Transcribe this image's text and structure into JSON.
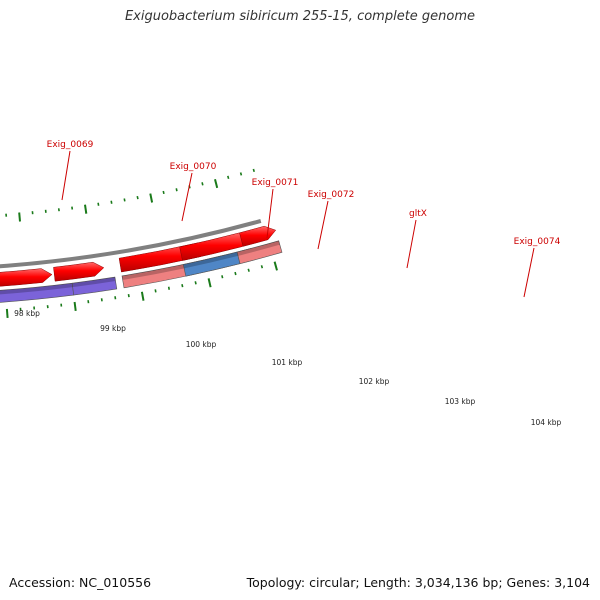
{
  "title": "Exiguobacterium sibiricum 255-15, complete genome",
  "footer": {
    "accession": "Accession: NC_010556",
    "summary": "Topology: circular; Length: 3,034,136 bp; Genes: 3,104"
  },
  "colors": {
    "cds": "#ff0000",
    "backbone": "#808080",
    "ticks": "#1a7a1a",
    "label": "#cc0000"
  },
  "scale_labels": [
    "98 kbp",
    "99 kbp",
    "100 kbp",
    "101 kbp",
    "102 kbp",
    "103 kbp",
    "104 kbp"
  ],
  "genes": [
    {
      "name": "",
      "color": "#b9b26c"
    },
    {
      "name": "Exig_0069",
      "color": "#b9b26c"
    },
    {
      "name": "Exig_0070",
      "color": "#bfbfbf"
    },
    {
      "name": "Exig_0071",
      "color": "#7b63d9"
    },
    {
      "name": "Exig_0072",
      "color": "#7b63d9"
    },
    {
      "name": "gltX",
      "color": "#ee8080"
    },
    {
      "name": "Exig_0074",
      "color": "#4f86c6"
    },
    {
      "name": "",
      "color": "#ee8080"
    }
  ]
}
